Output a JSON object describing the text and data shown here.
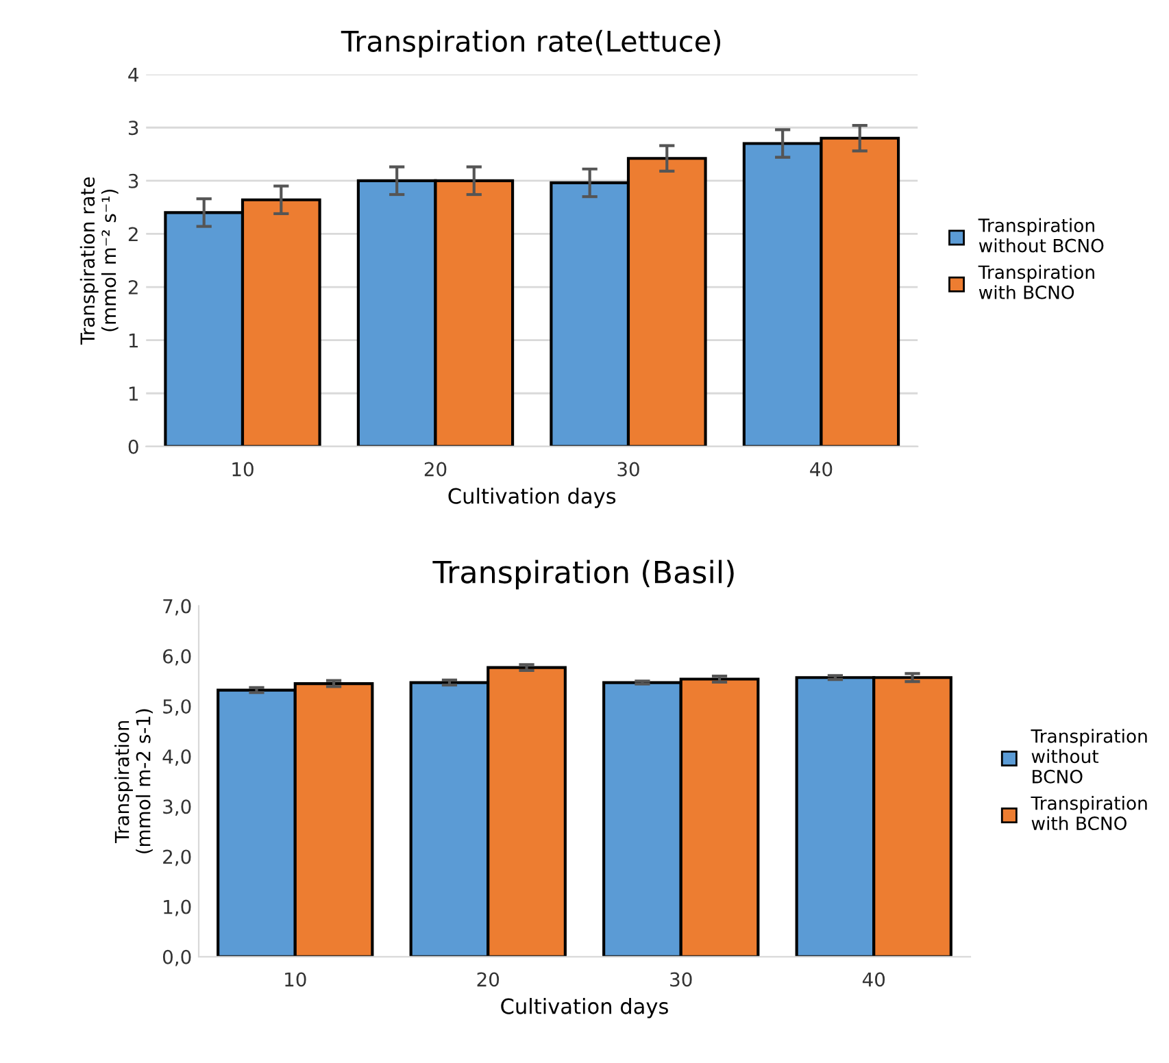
{
  "chart_data": [
    {
      "type": "bar",
      "title": "Transpiration rate(Lettuce)",
      "xlabel": "Cultivation days",
      "ylabel": "Transpiration rate\n(mmol m⁻² s⁻¹)",
      "categories": [
        "10",
        "20",
        "30",
        "40"
      ],
      "series": [
        {
          "name": "Transpiration\nwithout BCNO",
          "color": "#5b9bd5",
          "values": [
            2.2,
            2.5,
            2.48,
            2.85
          ],
          "errors": [
            0.13,
            0.13,
            0.13,
            0.13
          ]
        },
        {
          "name": "Transpiration\nwith BCNO",
          "color": "#ed7d31",
          "values": [
            2.32,
            2.5,
            2.71,
            2.9
          ],
          "errors": [
            0.13,
            0.13,
            0.12,
            0.12
          ]
        }
      ],
      "ylim": [
        0,
        3.5
      ],
      "yticks": [
        0,
        {
          "value": 0.5,
          "label": "1"
        },
        {
          "value": 1,
          "label": "1"
        },
        {
          "value": 1.5,
          "label": "2"
        },
        {
          "value": 2,
          "label": "2"
        },
        {
          "value": 2.5,
          "label": "3"
        },
        {
          "value": 3,
          "label": "3"
        },
        {
          "value": 3.5,
          "label": "4"
        }
      ],
      "grid": "y",
      "legend": "right"
    },
    {
      "type": "bar",
      "title": "Transpiration (Basil)",
      "xlabel": "Cultivation days",
      "ylabel": "Transpiration\n(mmol m-2 s-1)",
      "categories": [
        "10",
        "20",
        "30",
        "40"
      ],
      "series": [
        {
          "name": "Transpiration\nwithout\nBCNO",
          "color": "#5b9bd5",
          "values": [
            5.32,
            5.47,
            5.47,
            5.57
          ],
          "errors": [
            0.05,
            0.05,
            0.03,
            0.04
          ]
        },
        {
          "name": "Transpiration\nwith BCNO",
          "color": "#ed7d31",
          "values": [
            5.45,
            5.77,
            5.54,
            5.57
          ],
          "errors": [
            0.06,
            0.06,
            0.06,
            0.08
          ]
        }
      ],
      "ylim": [
        0,
        7
      ],
      "yticks": [
        {
          "value": 0,
          "label": "0,0"
        },
        {
          "value": 1,
          "label": "1,0"
        },
        {
          "value": 2,
          "label": "2,0"
        },
        {
          "value": 3,
          "label": "3,0"
        },
        {
          "value": 4,
          "label": "4,0"
        },
        {
          "value": 5,
          "label": "5,0"
        },
        {
          "value": 6,
          "label": "6,0"
        },
        {
          "value": 7,
          "label": "7,0"
        }
      ],
      "grid": false,
      "legend": "right"
    }
  ]
}
